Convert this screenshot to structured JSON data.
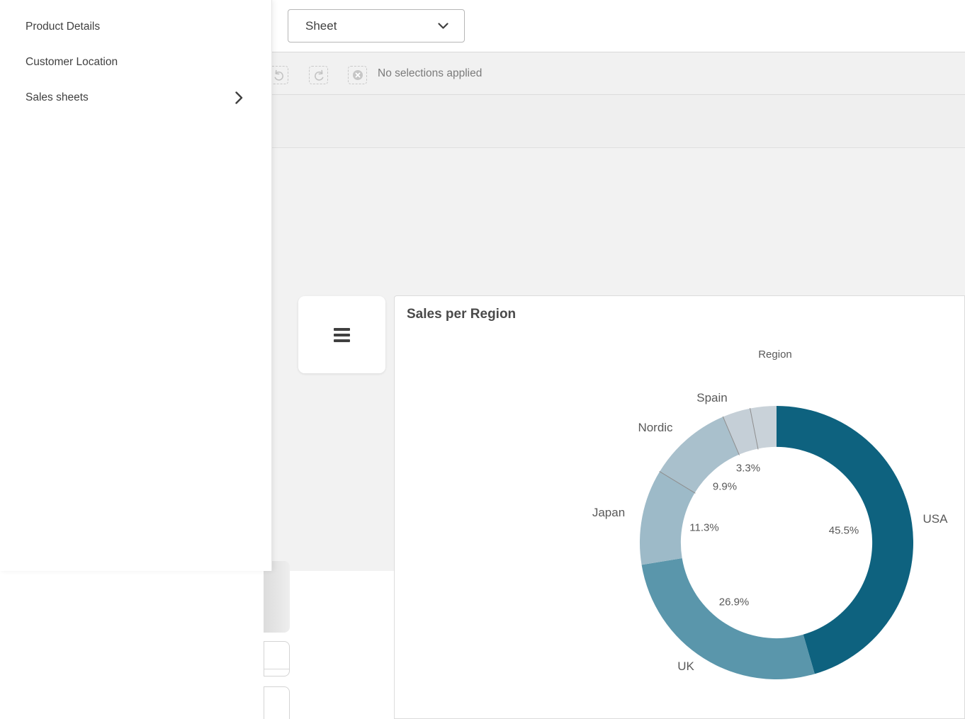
{
  "overlay_menu": {
    "items": [
      {
        "label": "Product Details",
        "has_submenu": false
      },
      {
        "label": "Customer Location",
        "has_submenu": false
      },
      {
        "label": "Sales sheets",
        "has_submenu": true
      }
    ]
  },
  "top_bar": {
    "sheet_selector": {
      "value": "Sheet"
    }
  },
  "selections_bar": {
    "status_text": "No selections applied",
    "icons": [
      "undo-selection",
      "redo-selection",
      "clear-selections"
    ]
  },
  "chart_panel": {
    "title": "Sales per Region",
    "legend_title": "Region"
  },
  "chart_data": {
    "type": "pie",
    "donut": true,
    "title": "Sales per Region",
    "dimension": "Region",
    "start_angle_deg": 0,
    "clockwise": true,
    "inner_radius_ratio": 0.7,
    "slices": [
      {
        "label": "USA",
        "percent": 45.5,
        "percent_label": "45.5%",
        "color": "#0e627f"
      },
      {
        "label": "UK",
        "percent": 26.9,
        "percent_label": "26.9%",
        "color": "#5a96ab"
      },
      {
        "label": "Japan",
        "percent": 11.3,
        "percent_label": "11.3%",
        "color": "#9dbac8"
      },
      {
        "label": "Nordic",
        "percent": 9.9,
        "percent_label": "9.9%",
        "color": "#a9c0cc"
      },
      {
        "label": "Spain",
        "percent": 3.3,
        "percent_label": "3.3%",
        "color": "#c5cfd7"
      },
      {
        "label": "",
        "percent": 3.1,
        "percent_label": "",
        "color": "#c9d2d9"
      }
    ],
    "dividers_after": [
      "Japan",
      "Nordic",
      "Spain"
    ],
    "divider_color": "#8e8e8e"
  }
}
